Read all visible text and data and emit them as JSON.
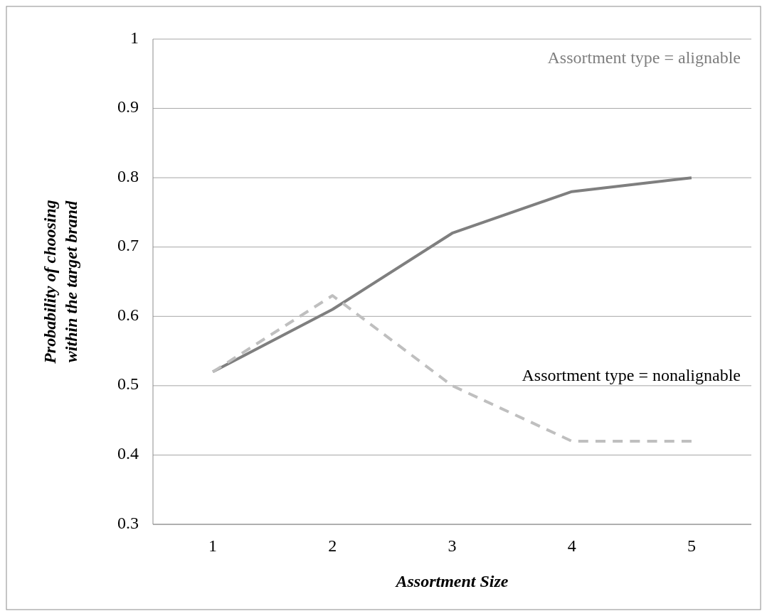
{
  "chart_data": {
    "type": "line",
    "xlabel": "Assortment Size",
    "ylabel": "Probability of choosing within the target brand",
    "categories": [
      "1",
      "2",
      "3",
      "4",
      "5"
    ],
    "series": [
      {
        "name": "Assortment type = alignable",
        "color": "#7f7f7f",
        "line_style": "solid",
        "values": [
          0.52,
          0.61,
          0.72,
          0.78,
          0.8
        ]
      },
      {
        "name": "Assortment type = nonalignable",
        "color": "#bfbfbf",
        "line_style": "dashed",
        "values": [
          0.52,
          0.63,
          0.5,
          0.42,
          0.42
        ]
      }
    ],
    "ylim": [
      0.3,
      1
    ],
    "yticks": [
      0.3,
      0.4,
      0.5,
      0.6,
      0.7,
      0.8,
      0.9,
      1
    ],
    "grid": "y",
    "legend": false,
    "marker": "none"
  }
}
